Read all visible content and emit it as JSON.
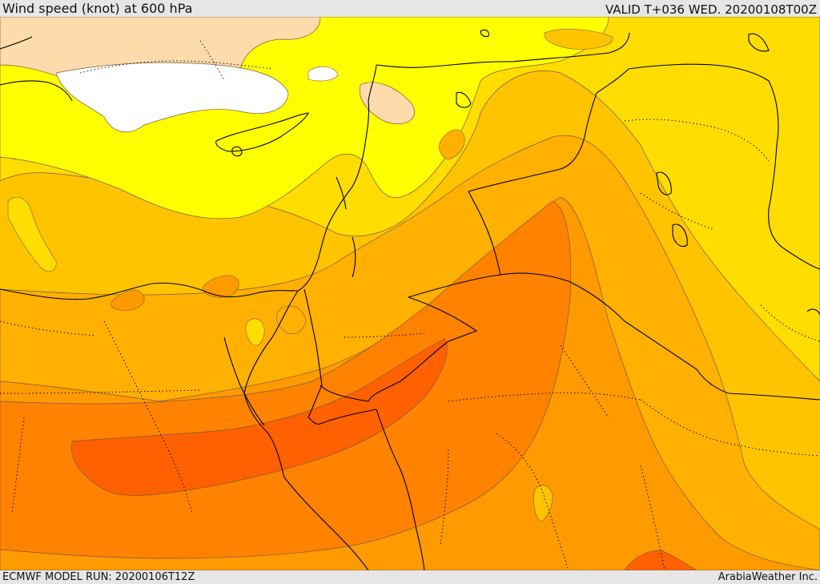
{
  "header": {
    "title": "Wind speed (knot) at 600 hPa",
    "valid": "VALID T+036 WED. 20200108T00Z"
  },
  "footer": {
    "model_run": "ECMWF MODEL RUN: 20200106T12Z",
    "credit": "ArabiaWeather Inc."
  },
  "map": {
    "colors": {
      "white": "#ffffff",
      "peach": "#fddbab",
      "yellow": "#ffff00",
      "gold": "#ffdd00",
      "amber": "#ffc400",
      "orange_light": "#ffb000",
      "orange": "#ff9a00",
      "orange_dark": "#ff8200",
      "red_orange": "#ff6000",
      "border_line": "#000000",
      "contour_line": "#7a5a40"
    }
  }
}
